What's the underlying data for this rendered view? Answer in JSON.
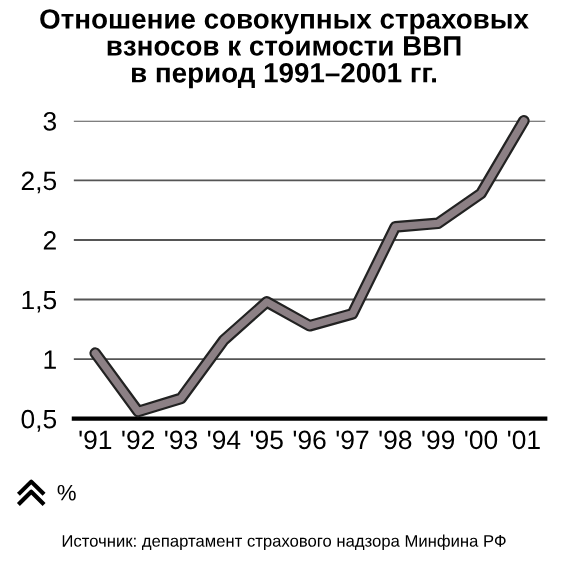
{
  "chart_data": {
    "type": "line",
    "title": "Отношение совокупных страховых\nвзносов к стоимости ВВП\nв период 1991–2001 гг.",
    "categories": [
      "'91",
      "'92",
      "'93",
      "'94",
      "'95",
      "'96",
      "'97",
      "'98",
      "'99",
      "'00",
      "'01"
    ],
    "series": [
      {
        "color": "#8c8085",
        "values": [
          1.05,
          0.56,
          0.67,
          1.16,
          1.48,
          1.28,
          1.38,
          2.11,
          2.14,
          2.39,
          3.0
        ]
      }
    ],
    "ylim": [
      0.5,
      3
    ],
    "yticks": [
      {
        "value": 0.5,
        "label": "0,5"
      },
      1,
      {
        "value": 1.5,
        "label": "1,5"
      },
      2,
      {
        "value": 2.5,
        "label": "2,5"
      },
      3
    ],
    "ylabel": "%",
    "grid": "y",
    "annotations": [
      "Источник: департамент страхового надзора Минфина РФ"
    ]
  }
}
